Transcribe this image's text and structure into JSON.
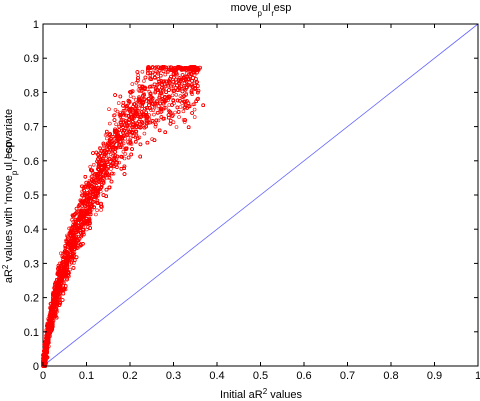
{
  "chart_data": {
    "type": "scatter",
    "title": "move_p_r ul esp",
    "title_main": "move",
    "title_sub1": "p",
    "title_mid": "ul esp",
    "title_sub2": "r",
    "xlabel": "Initial aR2 values",
    "xlabel_pre": "Initial aR",
    "xlabel_sup": "2",
    "xlabel_post": " values",
    "ylabel": "aR2 values with 'move_p_r ul esp' covariate",
    "ylabel_pre": "aR",
    "ylabel_sup": "2",
    "ylabel_mid": " values with 'move",
    "ylabel_sub1": "p",
    "ylabel_mid2": "ul esp",
    "ylabel_sub2": "r",
    "ylabel_post": "' covariate",
    "xlim": [
      0,
      1
    ],
    "ylim": [
      0,
      1
    ],
    "xticks": [
      "0",
      "0.1",
      "0.2",
      "0.3",
      "0.4",
      "0.5",
      "0.6",
      "0.7",
      "0.8",
      "0.9",
      "1"
    ],
    "yticks": [
      "0",
      "0.1",
      "0.2",
      "0.3",
      "0.4",
      "0.5",
      "0.6",
      "0.7",
      "0.8",
      "0.9",
      "1"
    ],
    "grid": false,
    "series": [
      {
        "marker": "open-circle",
        "color": "#ff0000",
        "points": [
          [
            0.005,
            0.03
          ],
          [
            0.01,
            0.08
          ],
          [
            0.015,
            0.12
          ],
          [
            0.02,
            0.15
          ],
          [
            0.025,
            0.18
          ],
          [
            0.03,
            0.2
          ],
          [
            0.035,
            0.23
          ],
          [
            0.04,
            0.25
          ],
          [
            0.05,
            0.29
          ],
          [
            0.06,
            0.33
          ],
          [
            0.07,
            0.37
          ],
          [
            0.08,
            0.4
          ],
          [
            0.09,
            0.44
          ],
          [
            0.1,
            0.47
          ],
          [
            0.11,
            0.5
          ],
          [
            0.12,
            0.53
          ],
          [
            0.13,
            0.56
          ],
          [
            0.14,
            0.59
          ],
          [
            0.15,
            0.61
          ],
          [
            0.16,
            0.63
          ],
          [
            0.17,
            0.66
          ],
          [
            0.18,
            0.68
          ],
          [
            0.19,
            0.7
          ],
          [
            0.2,
            0.72
          ],
          [
            0.22,
            0.75
          ],
          [
            0.24,
            0.78
          ],
          [
            0.26,
            0.8
          ],
          [
            0.28,
            0.82
          ],
          [
            0.3,
            0.84
          ],
          [
            0.33,
            0.86
          ],
          [
            0.36,
            0.87
          ]
        ],
        "n_points": 6000
      }
    ],
    "reference_line": {
      "x": [
        0,
        1
      ],
      "y": [
        0,
        1
      ],
      "color": "#6666ff"
    }
  }
}
